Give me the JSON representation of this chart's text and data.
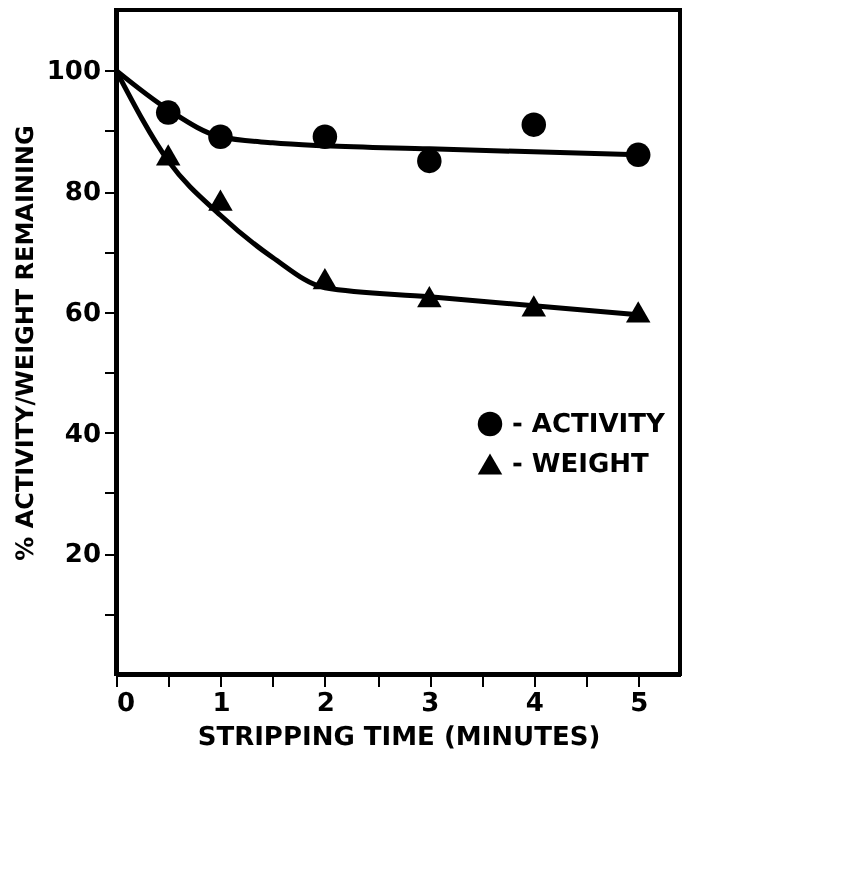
{
  "chart_data": {
    "type": "scatter",
    "xlabel": "STRIPPING TIME (MINUTES)",
    "ylabel": "% ACTIVITY/WEIGHT REMAINING",
    "xlim": [
      0,
      5.4
    ],
    "ylim": [
      0,
      110
    ],
    "xticks": [
      0,
      {
        "value": 0.5,
        "label": null
      },
      1,
      {
        "value": 1.5,
        "label": null
      },
      2,
      {
        "value": 2.5,
        "label": null
      },
      3,
      {
        "value": 3.5,
        "label": null
      },
      4,
      {
        "value": 4.5,
        "label": null
      },
      5
    ],
    "yticks": [
      {
        "value": 10,
        "label": null
      },
      20,
      {
        "value": 30,
        "label": null
      },
      40,
      {
        "value": 50,
        "label": null
      },
      60,
      {
        "value": 70,
        "label": null
      },
      80,
      {
        "value": 90,
        "label": null
      },
      100
    ],
    "grid": false,
    "legend": "right",
    "series": [
      {
        "name": "- ACTIVITY",
        "color": "#000000",
        "marker": "circle",
        "x": [
          0.5,
          1,
          2,
          3,
          4,
          5
        ],
        "values": [
          93,
          89,
          89,
          85,
          91,
          86
        ]
      },
      {
        "name": "- WEIGHT",
        "color": "#000000",
        "marker": "triangle",
        "x": [
          0.5,
          1,
          2,
          3,
          4,
          5
        ],
        "values": [
          86,
          78.5,
          65.5,
          62.5,
          61,
          60
        ]
      },
      {
        "type": "line",
        "color": "#000000",
        "line_style": "solid",
        "x": [
          0,
          0.5,
          1,
          1.5,
          2,
          3,
          4,
          5
        ],
        "values": [
          100,
          93.5,
          89,
          88,
          87.5,
          87,
          86.5,
          86
        ]
      },
      {
        "type": "line",
        "color": "#000000",
        "line_style": "solid",
        "x": [
          0,
          0.5,
          1,
          1.5,
          2,
          3,
          4,
          5
        ],
        "values": [
          100,
          85,
          76,
          69,
          64,
          62.5,
          61,
          59.5
        ]
      }
    ]
  }
}
